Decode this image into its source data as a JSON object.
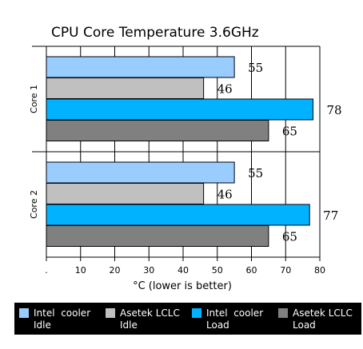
{
  "chart_data": {
    "type": "bar",
    "orientation": "horizontal",
    "title": "CPU Core Temperature 3.6GHz",
    "xlabel": "°C (lower is better)",
    "xlim": [
      0,
      80
    ],
    "x_ticks": [
      ".",
      "10",
      "20",
      "30",
      "40",
      "50",
      "60",
      "70",
      "80"
    ],
    "categories": [
      "Core 1",
      "Core 2"
    ],
    "series": [
      {
        "name": "Intel  cooler Idle",
        "color": "#99ccff",
        "values": [
          55,
          55
        ]
      },
      {
        "name": "Asetek LCLC Idle",
        "color": "#c0c0c0",
        "values": [
          46,
          46
        ]
      },
      {
        "name": "Intel  cooler Load",
        "color": "#00b2ff",
        "values": [
          78,
          77
        ]
      },
      {
        "name": "Asetek LCLC Load",
        "color": "#808080",
        "values": [
          65,
          65
        ]
      }
    ],
    "grid": "vertical",
    "legend_position": "bottom"
  }
}
